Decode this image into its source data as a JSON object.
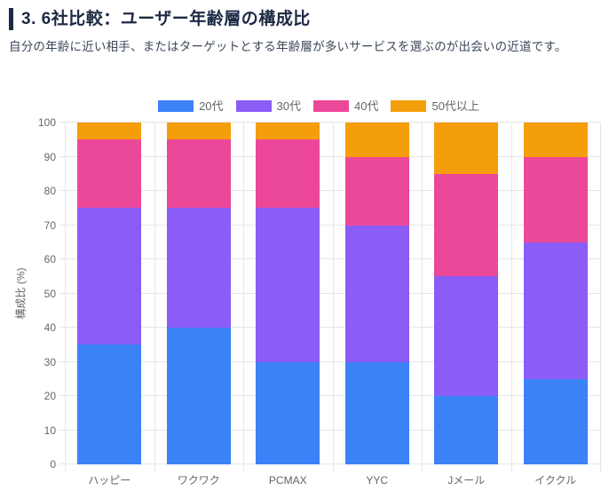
{
  "header": {
    "title": "3. 6社比較：ユーザー年齢層の構成比",
    "description": "自分の年齢に近い相手、またはターゲットとする年齢層が多いサービスを選ぶのが出会いの近道です。"
  },
  "chart_data": {
    "type": "bar",
    "stacked": true,
    "title": "",
    "xlabel": "",
    "ylabel": "構成比 (%)",
    "ylim": [
      0,
      100
    ],
    "ytick_step": 10,
    "grid": true,
    "legend_position": "top",
    "categories": [
      "ハッピー",
      "ワクワク",
      "PCMAX",
      "YYC",
      "Jメール",
      "イククル"
    ],
    "series": [
      {
        "name": "20代",
        "color": "#3B82F6",
        "values": [
          35,
          40,
          30,
          30,
          20,
          25
        ]
      },
      {
        "name": "30代",
        "color": "#8B5CF6",
        "values": [
          40,
          35,
          45,
          40,
          35,
          40
        ]
      },
      {
        "name": "40代",
        "color": "#EC4899",
        "values": [
          20,
          20,
          20,
          20,
          30,
          25
        ]
      },
      {
        "name": "50代以上",
        "color": "#F59E0B",
        "values": [
          5,
          5,
          5,
          10,
          15,
          10
        ]
      }
    ],
    "colors": {
      "grid": "#e6e6e6",
      "tick_text": "#666666",
      "title_text": "#1d2a44",
      "description_text": "#3c4858"
    }
  }
}
